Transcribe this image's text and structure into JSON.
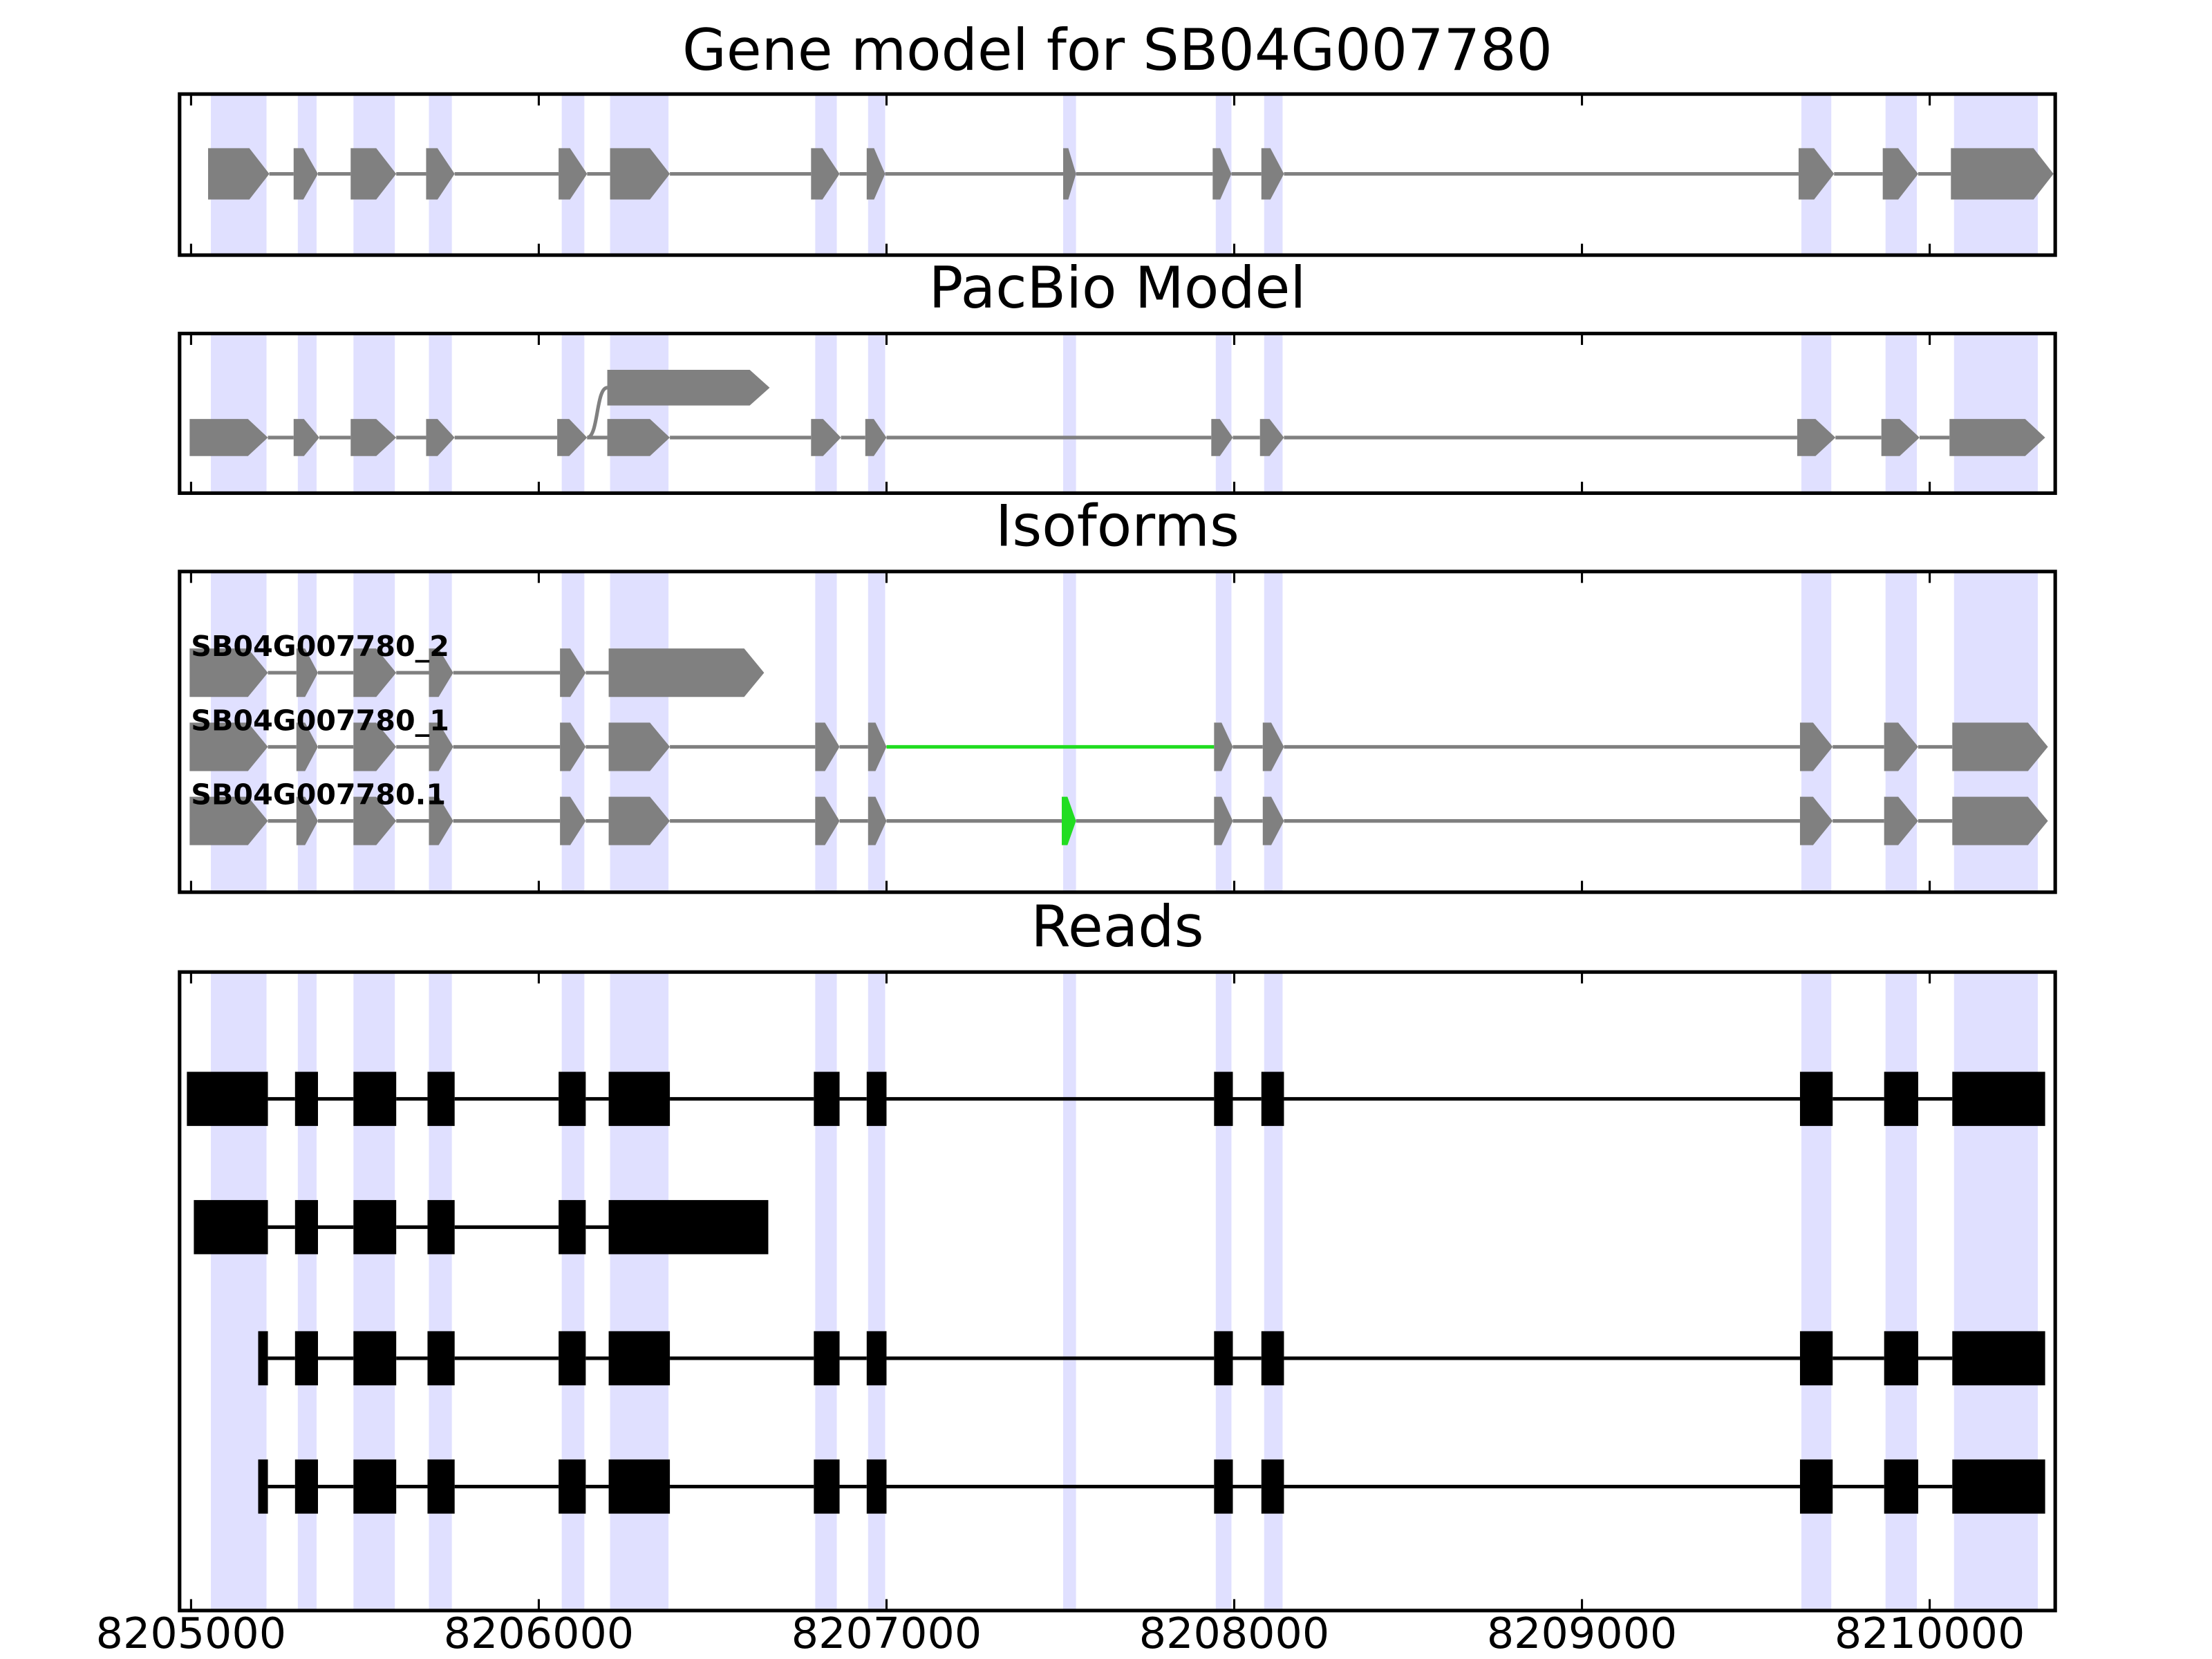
{
  "chart_data": {
    "type": "gene_model",
    "title": "Gene model for SB04G007780",
    "xlim": [
      8204967,
      8210361
    ],
    "xticks": [
      8205000,
      8206000,
      8207000,
      8208000,
      8209000,
      8210000
    ],
    "feature_color": "#808080",
    "read_color": "#000000",
    "highlight_color": "#e0e0ff",
    "alt_color": "#22dd22",
    "highlights": [
      [
        8205057,
        8205217
      ],
      [
        8205307,
        8205361
      ],
      [
        8205467,
        8205586
      ],
      [
        8205684,
        8205750
      ],
      [
        8206066,
        8206131
      ],
      [
        8206205,
        8206373
      ],
      [
        8206795,
        8206857
      ],
      [
        8206947,
        8206996
      ],
      [
        8207508,
        8207545
      ],
      [
        8207947,
        8207992
      ],
      [
        8208086,
        8208139
      ],
      [
        8209631,
        8209717
      ],
      [
        8209873,
        8209963
      ],
      [
        8210070,
        8210311
      ]
    ],
    "gene_model": {
      "exons": [
        [
          8205049,
          8205225
        ],
        [
          8205295,
          8205365
        ],
        [
          8205459,
          8205590
        ],
        [
          8205676,
          8205758
        ],
        [
          8206057,
          8206139
        ],
        [
          8206205,
          8206377
        ],
        [
          8206783,
          8206865
        ],
        [
          8206943,
          8206996
        ],
        [
          8207508,
          8207545
        ],
        [
          8207938,
          8207992
        ],
        [
          8208078,
          8208143
        ],
        [
          8209623,
          8209725
        ],
        [
          8209865,
          8209967
        ],
        [
          8210061,
          8210356
        ]
      ]
    },
    "pacbio": {
      "title": "PacBio Model",
      "exons": [
        [
          8204996,
          8205221
        ],
        [
          8205295,
          8205369
        ],
        [
          8205459,
          8205590
        ],
        [
          8205676,
          8205758
        ],
        [
          8206053,
          8206139
        ],
        [
          8206197,
          8206377
        ],
        [
          8206783,
          8206869
        ],
        [
          8206939,
          8207000
        ],
        [
          8207934,
          8207996
        ],
        [
          8208074,
          8208143
        ],
        [
          8209619,
          8209729
        ],
        [
          8209861,
          8209971
        ],
        [
          8210057,
          8210332
        ]
      ],
      "branch": [
        8206197,
        8206664
      ]
    },
    "isoforms": {
      "title": "Isoforms",
      "rows": [
        {
          "name": "SB04G007780_2",
          "exons": [
            [
              8204996,
              8205221
            ],
            [
              8205303,
              8205365
            ],
            [
              8205467,
              8205590
            ],
            [
              8205684,
              8205754
            ],
            [
              8206061,
              8206135
            ],
            [
              8206201,
              8206648
            ]
          ]
        },
        {
          "name": "SB04G007780_1",
          "exons": [
            [
              8204996,
              8205221
            ],
            [
              8205303,
              8205365
            ],
            [
              8205467,
              8205590
            ],
            [
              8205684,
              8205754
            ],
            [
              8206061,
              8206135
            ],
            [
              8206201,
              8206377
            ],
            [
              8206795,
              8206865
            ],
            [
              8206947,
              8207000
            ],
            [
              8207942,
              8207996
            ],
            [
              8208082,
              8208143
            ],
            [
              8209627,
              8209721
            ],
            [
              8209869,
              8209967
            ],
            [
              8210065,
              8210340
            ]
          ],
          "alt_intron": 7
        },
        {
          "name": "SB04G007780.1",
          "exons": [
            [
              8204996,
              8205221
            ],
            [
              8205303,
              8205365
            ],
            [
              8205467,
              8205590
            ],
            [
              8205684,
              8205754
            ],
            [
              8206061,
              8206135
            ],
            [
              8206201,
              8206377
            ],
            [
              8206795,
              8206865
            ],
            [
              8206947,
              8207000
            ],
            [
              8207504,
              8207545
            ],
            [
              8207942,
              8207996
            ],
            [
              8208082,
              8208143
            ],
            [
              8209627,
              8209721
            ],
            [
              8209869,
              8209967
            ],
            [
              8210065,
              8210340
            ]
          ],
          "alt_exon": 8
        }
      ]
    },
    "reads": {
      "title": "Reads",
      "rows": [
        [
          [
            8204988,
            8205221
          ],
          [
            8205299,
            8205365
          ],
          [
            8205467,
            8205590
          ],
          [
            8205680,
            8205758
          ],
          [
            8206057,
            8206135
          ],
          [
            8206201,
            8206377
          ],
          [
            8206791,
            8206865
          ],
          [
            8206943,
            8207000
          ],
          [
            8207942,
            8207996
          ],
          [
            8208078,
            8208143
          ],
          [
            8209627,
            8209721
          ],
          [
            8209869,
            8209967
          ],
          [
            8210065,
            8210332
          ]
        ],
        [
          [
            8205008,
            8205221
          ],
          [
            8205299,
            8205365
          ],
          [
            8205467,
            8205590
          ],
          [
            8205680,
            8205758
          ],
          [
            8206057,
            8206135
          ],
          [
            8206201,
            8206660
          ]
        ],
        [
          [
            8205193,
            8205221
          ],
          [
            8205299,
            8205365
          ],
          [
            8205467,
            8205590
          ],
          [
            8205680,
            8205758
          ],
          [
            8206057,
            8206135
          ],
          [
            8206201,
            8206377
          ],
          [
            8206791,
            8206865
          ],
          [
            8206943,
            8207000
          ],
          [
            8207942,
            8207996
          ],
          [
            8208078,
            8208143
          ],
          [
            8209627,
            8209721
          ],
          [
            8209869,
            8209967
          ],
          [
            8210065,
            8210332
          ]
        ],
        [
          [
            8205193,
            8205221
          ],
          [
            8205299,
            8205365
          ],
          [
            8205467,
            8205590
          ],
          [
            8205680,
            8205758
          ],
          [
            8206057,
            8206135
          ],
          [
            8206201,
            8206377
          ],
          [
            8206791,
            8206865
          ],
          [
            8206943,
            8207000
          ],
          [
            8207942,
            8207996
          ],
          [
            8208078,
            8208143
          ],
          [
            8209627,
            8209721
          ],
          [
            8209869,
            8209967
          ],
          [
            8210065,
            8210332
          ]
        ]
      ]
    }
  }
}
